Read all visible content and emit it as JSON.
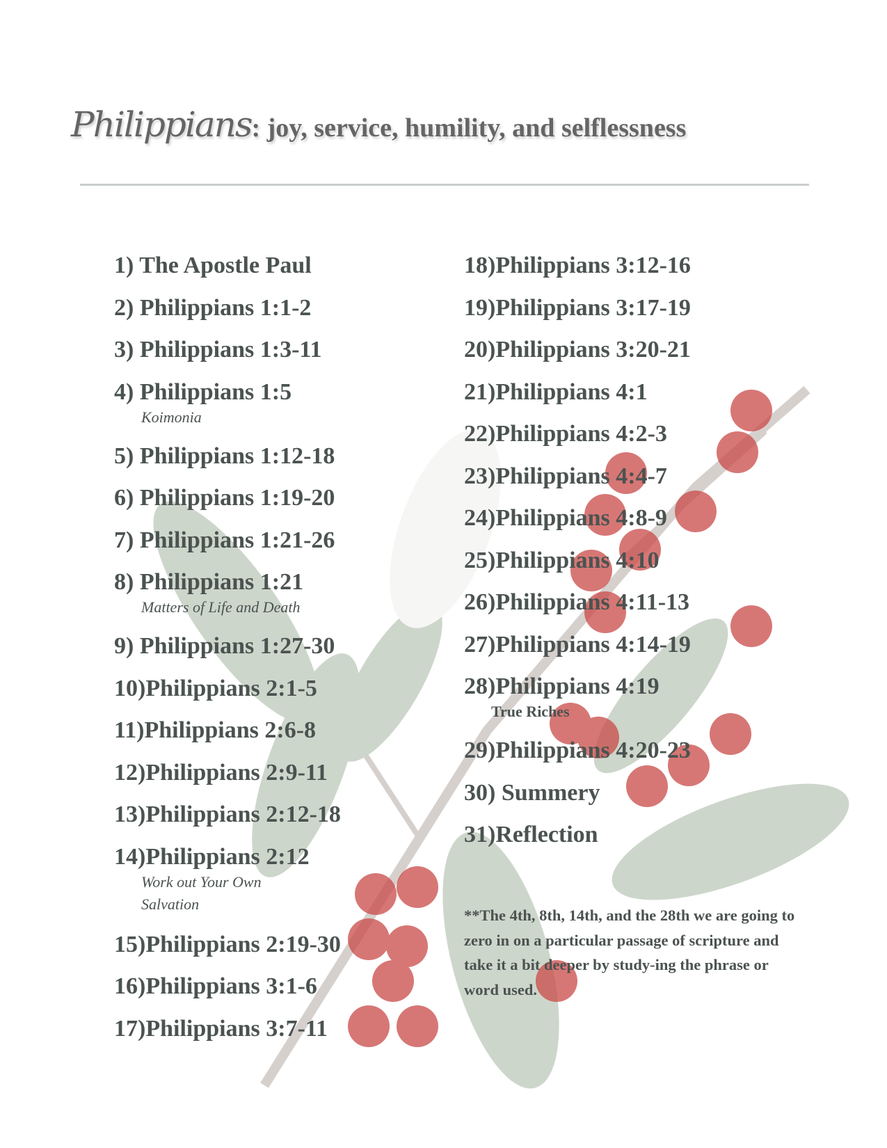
{
  "header": {
    "title_script": "Philippians",
    "title_rest": ": joy, service, humility, and selflessness"
  },
  "left_items": [
    {
      "label": "1) The Apostle Paul"
    },
    {
      "label": "2) Philippians 1:1-2"
    },
    {
      "label": "3) Philippians 1:3-11"
    },
    {
      "label": "4) Philippians 1:5",
      "sub": "Koimonia"
    },
    {
      "label": "5) Philippians 1:12-18"
    },
    {
      "label": "6) Philippians 1:19-20"
    },
    {
      "label": "7) Philippians 1:21-26"
    },
    {
      "label": "8) Philippians 1:21",
      "sub": "Matters of Life and Death"
    },
    {
      "label": "9) Philippians 1:27-30"
    },
    {
      "label": "10)Philippians 2:1-5"
    },
    {
      "label": "11)Philippians 2:6-8"
    },
    {
      "label": "12)Philippians 2:9-11"
    },
    {
      "label": "13)Philippians 2:12-18"
    },
    {
      "label": "14)Philippians 2:12",
      "sub": "Work out Your Own",
      "sub2": "Salvation"
    },
    {
      "label": "15)Philippians 2:19-30"
    },
    {
      "label": "16)Philippians 3:1-6"
    },
    {
      "label": "17)Philippians 3:7-11"
    }
  ],
  "right_items": [
    {
      "label": "18)Philippians 3:12-16"
    },
    {
      "label": "19)Philippians 3:17-19"
    },
    {
      "label": "20)Philippians 3:20-21"
    },
    {
      "label": "21)Philippians 4:1"
    },
    {
      "label": "22)Philippians 4:2-3"
    },
    {
      "label": "23)Philippians 4:4-7"
    },
    {
      "label": "24)Philippians 4:8-9"
    },
    {
      "label": "25)Philippians 4:10"
    },
    {
      "label": "26)Philippians 4:11-13"
    },
    {
      "label": "27)Philippians 4:14-19"
    },
    {
      "label": "28)Philippians 4:19",
      "sub": "True Riches"
    },
    {
      "label": "29)Philippians 4:20-23"
    },
    {
      "label": "30) Summery"
    },
    {
      "label": "31)Reflection"
    }
  ],
  "note": "**The 4th, 8th, 14th, and the 28th we are going to zero in on a particular passage of scripture and take it a bit deeper by study-ing the phrase or word used.",
  "colors": {
    "text": "#4b5351",
    "title": "#656565",
    "rule": "#c9cfcc",
    "berry": "#c94a47",
    "leaf": "#6f8a6a"
  }
}
